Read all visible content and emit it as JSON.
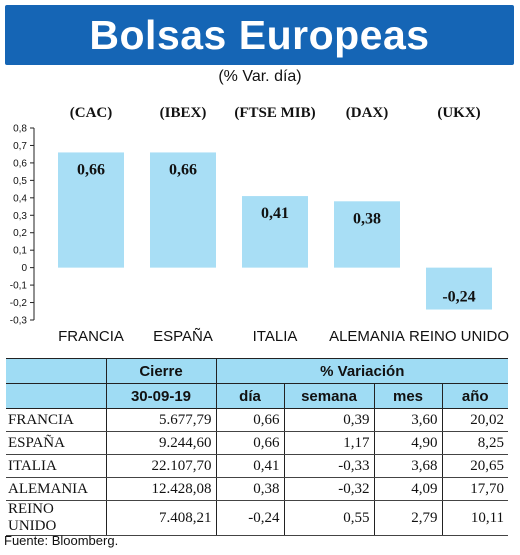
{
  "header": {
    "title": "Bolsas Europeas",
    "subtitle": "(% Var. día)"
  },
  "chart_data": {
    "type": "bar",
    "categories": [
      "FRANCIA",
      "ESPAÑA",
      "ITALIA",
      "ALEMANIA",
      "REINO UNIDO"
    ],
    "indices": [
      "(CAC)",
      "(IBEX)",
      "(FTSE MIB)",
      "(DAX)",
      "(UKX)"
    ],
    "values": [
      0.66,
      0.66,
      0.41,
      0.38,
      -0.24
    ],
    "value_labels": [
      "0,66",
      "0,66",
      "0,41",
      "0,38",
      "-0,24"
    ],
    "yticks": [
      "0,8",
      "0,7",
      "0,6",
      "0,5",
      "0,4",
      "0,3",
      "0,2",
      "0,1",
      "0",
      "-0,1",
      "-0,2",
      "-0,3"
    ],
    "ylim": [
      -0.3,
      0.8
    ],
    "bar_color": "#a8def5",
    "grid": false
  },
  "table": {
    "header_group_1": "Cierre",
    "header_group_2": "% Variación",
    "columns": [
      "30-09-19",
      "día",
      "semana",
      "mes",
      "año"
    ],
    "rows": [
      [
        "FRANCIA",
        "5.677,79",
        "0,66",
        "0,39",
        "3,60",
        "20,02"
      ],
      [
        "ESPAÑA",
        "9.244,60",
        "0,66",
        "1,17",
        "4,90",
        "8,25"
      ],
      [
        "ITALIA",
        "22.107,70",
        "0,41",
        "-0,33",
        "3,68",
        "20,65"
      ],
      [
        "ALEMANIA",
        "12.428,08",
        "0,38",
        "-0,32",
        "4,09",
        "17,70"
      ],
      [
        "REINO UNIDO",
        "7.408,21",
        "-0,24",
        "0,55",
        "2,79",
        "10,11"
      ]
    ],
    "header_color": "#9fdcf4"
  },
  "footer": {
    "source": "Fuente: Bloomberg."
  }
}
